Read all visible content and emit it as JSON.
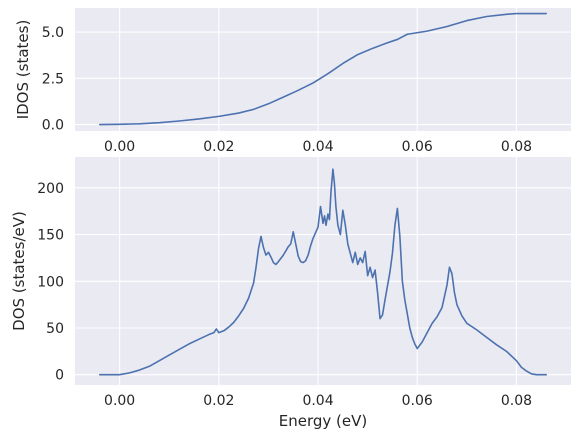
{
  "chart_data": [
    {
      "type": "line",
      "title": "",
      "xlabel": "",
      "ylabel": "IDOS (states)",
      "xlim": [
        -0.009,
        0.091
      ],
      "ylim": [
        -0.35,
        6.3
      ],
      "xticks": [
        0.0,
        0.02,
        0.04,
        0.06,
        0.08
      ],
      "xtick_labels": [
        "0.00",
        "0.02",
        "0.04",
        "0.06",
        "0.08"
      ],
      "yticks": [
        0.0,
        2.5,
        5.0
      ],
      "ytick_labels": [
        "0.0",
        "2.5",
        "5.0"
      ],
      "grid": true,
      "series": [
        {
          "color": "#4c72b0",
          "x": [
            -0.004,
            0.0,
            0.004,
            0.008,
            0.012,
            0.016,
            0.02,
            0.024,
            0.027,
            0.03,
            0.033,
            0.036,
            0.039,
            0.042,
            0.045,
            0.048,
            0.051,
            0.054,
            0.056,
            0.058,
            0.062,
            0.066,
            0.07,
            0.074,
            0.078,
            0.08,
            0.083,
            0.086
          ],
          "y": [
            0.0,
            0.01,
            0.04,
            0.1,
            0.19,
            0.3,
            0.44,
            0.62,
            0.82,
            1.12,
            1.48,
            1.85,
            2.25,
            2.75,
            3.3,
            3.78,
            4.12,
            4.42,
            4.6,
            4.88,
            5.05,
            5.3,
            5.62,
            5.84,
            5.96,
            6.0,
            6.0,
            6.0
          ]
        }
      ]
    },
    {
      "type": "line",
      "title": "",
      "xlabel": "Energy (eV)",
      "ylabel": "DOS (states/eV)",
      "xlim": [
        -0.009,
        0.091
      ],
      "ylim": [
        -11,
        233
      ],
      "xticks": [
        0.0,
        0.02,
        0.04,
        0.06,
        0.08
      ],
      "xtick_labels": [
        "0.00",
        "0.02",
        "0.04",
        "0.06",
        "0.08"
      ],
      "yticks": [
        0,
        50,
        100,
        150,
        200
      ],
      "ytick_labels": [
        "0",
        "50",
        "100",
        "150",
        "200"
      ],
      "grid": true,
      "series": [
        {
          "color": "#4c72b0",
          "x": [
            -0.004,
            0.0,
            0.002,
            0.004,
            0.006,
            0.008,
            0.01,
            0.012,
            0.014,
            0.016,
            0.018,
            0.019,
            0.0195,
            0.02,
            0.021,
            0.022,
            0.023,
            0.024,
            0.025,
            0.026,
            0.027,
            0.0275,
            0.028,
            0.0285,
            0.029,
            0.0295,
            0.03,
            0.0305,
            0.031,
            0.0315,
            0.032,
            0.033,
            0.034,
            0.0345,
            0.035,
            0.0355,
            0.036,
            0.0365,
            0.037,
            0.0375,
            0.038,
            0.0385,
            0.039,
            0.0395,
            0.04,
            0.0405,
            0.041,
            0.0413,
            0.0416,
            0.042,
            0.0423,
            0.0426,
            0.043,
            0.0433,
            0.0436,
            0.044,
            0.0445,
            0.045,
            0.0455,
            0.046,
            0.0465,
            0.047,
            0.0475,
            0.048,
            0.0485,
            0.049,
            0.0495,
            0.05,
            0.0505,
            0.051,
            0.0515,
            0.052,
            0.0525,
            0.053,
            0.0535,
            0.054,
            0.0545,
            0.055,
            0.0555,
            0.056,
            0.0565,
            0.057,
            0.0575,
            0.058,
            0.0585,
            0.059,
            0.0595,
            0.06,
            0.061,
            0.062,
            0.063,
            0.064,
            0.065,
            0.066,
            0.0665,
            0.067,
            0.0675,
            0.068,
            0.069,
            0.07,
            0.072,
            0.074,
            0.076,
            0.078,
            0.08,
            0.081,
            0.082,
            0.083,
            0.084,
            0.085,
            0.086
          ],
          "y": [
            0,
            0,
            2,
            5,
            9,
            15,
            21,
            27,
            33,
            38,
            43,
            45,
            49,
            45,
            47,
            51,
            56,
            63,
            71,
            82,
            98,
            115,
            135,
            148,
            136,
            128,
            131,
            126,
            120,
            118,
            121,
            128,
            137,
            140,
            153,
            140,
            127,
            121,
            120,
            122,
            128,
            138,
            146,
            152,
            158,
            180,
            162,
            170,
            160,
            172,
            166,
            195,
            220,
            205,
            180,
            160,
            150,
            176,
            160,
            140,
            130,
            120,
            131,
            118,
            125,
            120,
            132,
            106,
            115,
            104,
            112,
            88,
            60,
            64,
            80,
            95,
            110,
            130,
            160,
            178,
            148,
            100,
            80,
            65,
            50,
            40,
            33,
            28,
            35,
            45,
            55,
            62,
            72,
            96,
            115,
            108,
            88,
            75,
            63,
            55,
            48,
            40,
            32,
            25,
            15,
            8,
            4,
            1,
            0,
            0,
            0
          ]
        }
      ]
    }
  ]
}
